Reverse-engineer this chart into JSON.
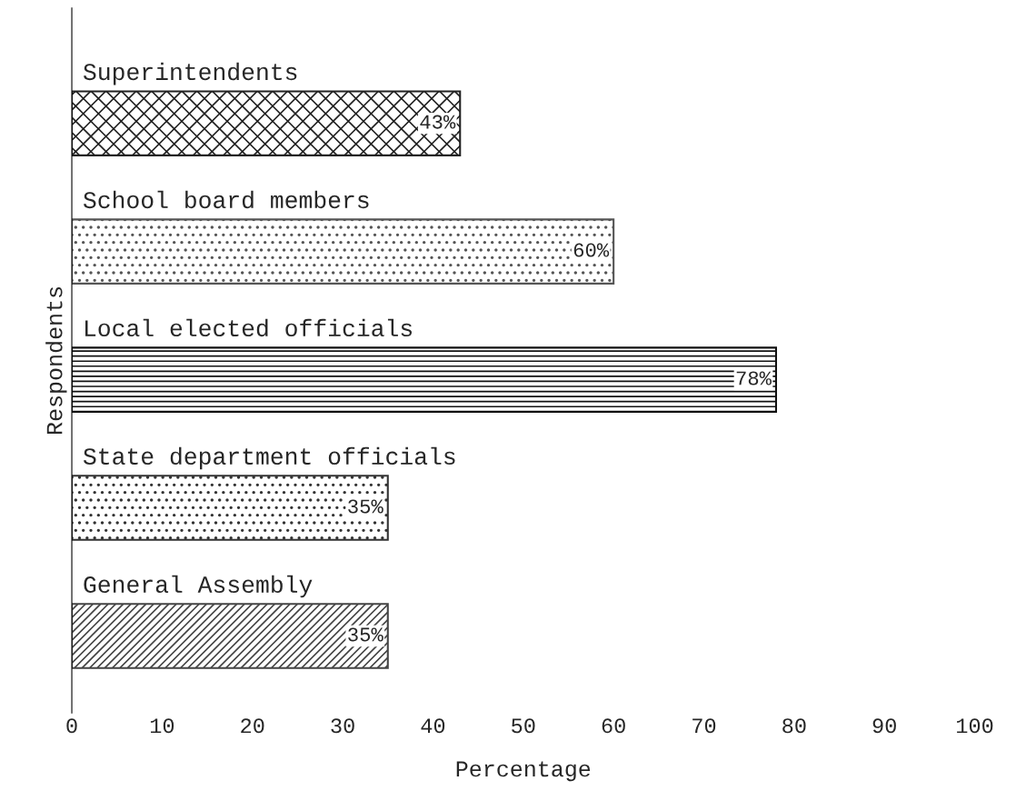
{
  "chart_data": {
    "type": "bar",
    "orientation": "horizontal",
    "xlabel": "Percentage",
    "ylabel": "Respondents",
    "categories": [
      "Superintendents",
      "School board members",
      "Local elected officials",
      "State department officials",
      "General Assembly"
    ],
    "values": [
      43,
      60,
      78,
      35,
      35
    ],
    "value_labels": [
      "43%",
      "60%",
      "78%",
      "35%",
      "35%"
    ],
    "colors": [
      "#222222",
      "#555555",
      "#111111",
      "#333333",
      "#444444"
    ],
    "xlim": [
      0,
      100
    ],
    "xticks": [
      0,
      10,
      20,
      30,
      40,
      50,
      60,
      70,
      80,
      90,
      100
    ],
    "grid": false,
    "legend": false
  }
}
